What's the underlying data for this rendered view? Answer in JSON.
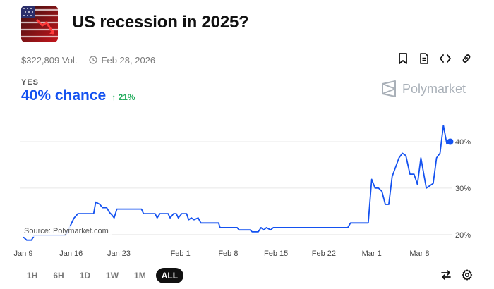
{
  "market": {
    "title": "US recession in 2025?",
    "volume": "$322,809 Vol.",
    "end_date": "Feb 28, 2026",
    "outcome_label": "YES",
    "chance_text": "40% chance",
    "change_text": "↑ 21%"
  },
  "brand": {
    "name": "Polymarket"
  },
  "source": "Source: Polymarket.com",
  "toolbar": {
    "icons": [
      "bookmark-icon",
      "document-icon",
      "code-icon",
      "link-icon"
    ]
  },
  "range_buttons": [
    {
      "label": "1H",
      "active": false
    },
    {
      "label": "6H",
      "active": false
    },
    {
      "label": "1D",
      "active": false
    },
    {
      "label": "1W",
      "active": false
    },
    {
      "label": "1M",
      "active": false
    },
    {
      "label": "ALL",
      "active": true
    }
  ],
  "colors": {
    "accent": "#1452f0",
    "positive": "#27ae60",
    "grid": "#e8e8e8"
  },
  "chart_data": {
    "type": "line",
    "title": "",
    "xlabel": "",
    "ylabel": "",
    "ylim": [
      18,
      45
    ],
    "y_ticks": [
      20,
      30,
      40
    ],
    "y_tick_labels": [
      "20%",
      "30%",
      "40%"
    ],
    "x_ticks": [
      {
        "day": 0,
        "label": "Jan 9"
      },
      {
        "day": 7,
        "label": "Jan 16"
      },
      {
        "day": 14,
        "label": "Jan 23"
      },
      {
        "day": 23,
        "label": "Feb 1"
      },
      {
        "day": 30,
        "label": "Feb 8"
      },
      {
        "day": 37,
        "label": "Feb 15"
      },
      {
        "day": 44,
        "label": "Feb 22"
      },
      {
        "day": 51,
        "label": "Mar 1"
      },
      {
        "day": 58,
        "label": "Mar 8"
      }
    ],
    "xlim": [
      0,
      62.5
    ],
    "grid": true,
    "series": [
      {
        "color": "#1452f0",
        "points": [
          [
            0,
            19.5
          ],
          [
            0.5,
            18.8
          ],
          [
            1.2,
            18.8
          ],
          [
            1.6,
            19.8
          ],
          [
            6.2,
            19.8
          ],
          [
            6.6,
            21.0
          ],
          [
            7.4,
            23.5
          ],
          [
            8,
            24.5
          ],
          [
            10.3,
            24.5
          ],
          [
            10.6,
            27.0
          ],
          [
            11.2,
            26.5
          ],
          [
            11.6,
            25.8
          ],
          [
            12.2,
            25.8
          ],
          [
            12.6,
            24.8
          ],
          [
            13.0,
            24.2
          ],
          [
            13.3,
            23.6
          ],
          [
            13.7,
            25.5
          ],
          [
            17.3,
            25.5
          ],
          [
            17.6,
            24.5
          ],
          [
            19.3,
            24.5
          ],
          [
            19.6,
            23.6
          ],
          [
            20.0,
            24.5
          ],
          [
            21.2,
            24.5
          ],
          [
            21.5,
            23.6
          ],
          [
            22.0,
            24.5
          ],
          [
            22.4,
            24.5
          ],
          [
            22.7,
            23.6
          ],
          [
            23.2,
            24.5
          ],
          [
            23.9,
            24.5
          ],
          [
            24.2,
            23.2
          ],
          [
            24.6,
            23.6
          ],
          [
            25.0,
            23.2
          ],
          [
            25.6,
            23.6
          ],
          [
            26.0,
            22.5
          ],
          [
            28.6,
            22.5
          ],
          [
            28.8,
            21.5
          ],
          [
            31.3,
            21.5
          ],
          [
            31.6,
            21.0
          ],
          [
            33.2,
            21.0
          ],
          [
            33.5,
            20.6
          ],
          [
            34.4,
            20.6
          ],
          [
            34.8,
            21.5
          ],
          [
            35.2,
            21.0
          ],
          [
            35.6,
            21.5
          ],
          [
            36.2,
            21.0
          ],
          [
            36.6,
            21.5
          ],
          [
            47.5,
            21.5
          ],
          [
            47.9,
            22.5
          ],
          [
            50.5,
            22.5
          ],
          [
            51.0,
            31.9
          ],
          [
            51.5,
            30.0
          ],
          [
            52.0,
            30.0
          ],
          [
            52.5,
            29.3
          ],
          [
            53.0,
            26.5
          ],
          [
            53.5,
            26.5
          ],
          [
            54.0,
            32.5
          ],
          [
            55.0,
            36.5
          ],
          [
            55.5,
            37.5
          ],
          [
            56.0,
            37.0
          ],
          [
            56.6,
            33.0
          ],
          [
            57.2,
            33.0
          ],
          [
            57.7,
            30.8
          ],
          [
            58.2,
            36.5
          ],
          [
            59.0,
            30.0
          ],
          [
            60.0,
            31.0
          ],
          [
            60.5,
            36.5
          ],
          [
            61.0,
            37.5
          ],
          [
            61.5,
            43.5
          ],
          [
            62.0,
            39.5
          ],
          [
            62.5,
            40.0
          ]
        ]
      }
    ],
    "end_marker": [
      62.5,
      40.0
    ]
  }
}
